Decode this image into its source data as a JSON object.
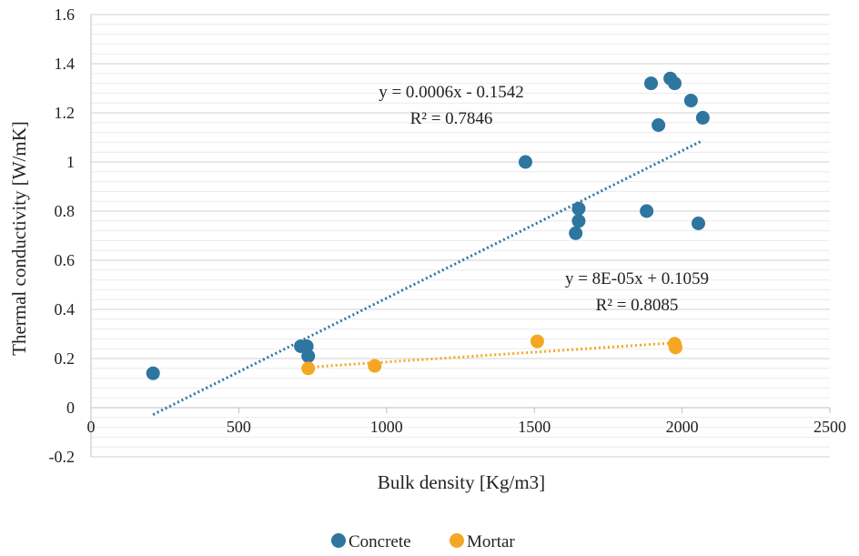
{
  "chart_data": {
    "type": "scatter",
    "xlabel": "Bulk density [Kg/m3]",
    "ylabel": "Thermal conductivity [W/mK]",
    "xlim": [
      0,
      2500
    ],
    "ylim": [
      -0.2,
      1.6
    ],
    "x_ticks": [
      "0",
      "500",
      "1000",
      "1500",
      "2000",
      "2500"
    ],
    "y_ticks": [
      "-0.2",
      "0",
      "0.2",
      "0.4",
      "0.6",
      "0.8",
      "1",
      "1.2",
      "1.4",
      "1.6"
    ],
    "grid": "horizontal major and minor",
    "legend_position": "bottom",
    "series": [
      {
        "name": "Concrete",
        "color": "#2e75a0",
        "points": [
          [
            210,
            0.14
          ],
          [
            710,
            0.25
          ],
          [
            730,
            0.25
          ],
          [
            735,
            0.21
          ],
          [
            1470,
            1.0
          ],
          [
            1640,
            0.71
          ],
          [
            1650,
            0.76
          ],
          [
            1650,
            0.81
          ],
          [
            1880,
            0.8
          ],
          [
            1895,
            1.32
          ],
          [
            1920,
            1.15
          ],
          [
            1960,
            1.34
          ],
          [
            1975,
            1.32
          ],
          [
            2030,
            1.25
          ],
          [
            2055,
            0.75
          ],
          [
            2070,
            1.18
          ]
        ],
        "trendline": {
          "equation": "y = 0.0006x - 0.1542",
          "r2": "R² = 0.7846",
          "slope": 0.0006,
          "intercept": -0.1542,
          "x_range": [
            210,
            2070
          ]
        }
      },
      {
        "name": "Mortar",
        "color": "#f5a623",
        "points": [
          [
            735,
            0.16
          ],
          [
            960,
            0.17
          ],
          [
            1510,
            0.27
          ],
          [
            1975,
            0.26
          ],
          [
            1978,
            0.245
          ]
        ],
        "trendline": {
          "equation": "y = 8E-05x + 0.1059",
          "r2": "R² = 0.8085",
          "slope": 8e-05,
          "intercept": 0.1059,
          "x_range": [
            735,
            1978
          ]
        }
      }
    ]
  }
}
